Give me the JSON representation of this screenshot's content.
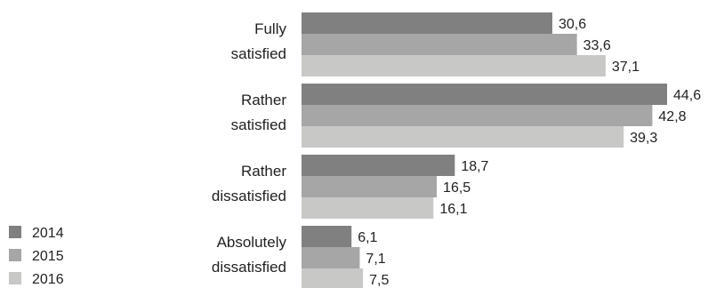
{
  "chart_data": {
    "type": "bar",
    "orientation": "horizontal",
    "categories": [
      [
        "Fully",
        "satisfied"
      ],
      [
        "Rather",
        "satisfied"
      ],
      [
        "Rather",
        "dissatisfied"
      ],
      [
        "Absolutely",
        "dissatisfied"
      ]
    ],
    "series": [
      {
        "name": "2014",
        "color": "#808080",
        "values": [
          30.6,
          44.6,
          18.7,
          6.1
        ],
        "labels": [
          "30,6",
          "44,6",
          "18,7",
          "6,1"
        ]
      },
      {
        "name": "2015",
        "color": "#a6a6a6",
        "values": [
          33.6,
          42.8,
          16.5,
          7.1
        ],
        "labels": [
          "33,6",
          "42,8",
          "16,5",
          "7,1"
        ]
      },
      {
        "name": "2016",
        "color": "#c8c8c6",
        "values": [
          37.1,
          39.3,
          16.1,
          7.5
        ],
        "labels": [
          "37,1",
          "39,3",
          "16,1",
          "7,5"
        ]
      }
    ],
    "xlim": [
      0,
      44.6
    ],
    "grid": false,
    "legend_position": "bottom-left",
    "title": "",
    "xlabel": "",
    "ylabel": ""
  }
}
